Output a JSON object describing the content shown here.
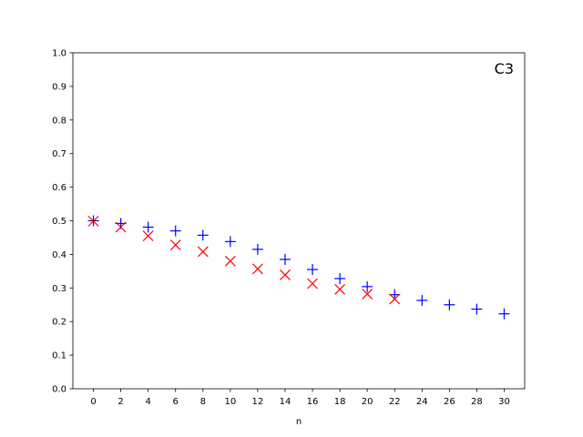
{
  "chart_data": {
    "type": "scatter",
    "xlabel": "n",
    "ylabel": "",
    "xlim": [
      -1.5,
      31.5
    ],
    "ylim": [
      0.0,
      1.0
    ],
    "xticks": [
      0,
      2,
      4,
      6,
      8,
      10,
      12,
      14,
      16,
      18,
      20,
      22,
      24,
      26,
      28,
      30
    ],
    "yticks": [
      0.0,
      0.1,
      0.2,
      0.3,
      0.4,
      0.5,
      0.6,
      0.7,
      0.8,
      0.9,
      1.0
    ],
    "ytick_labels": [
      "0.0",
      "0.1",
      "0.2",
      "0.3",
      "0.4",
      "0.5",
      "0.6",
      "0.7",
      "0.8",
      "0.9",
      "1.0"
    ],
    "grid": false,
    "annotation": "C3",
    "series": [
      {
        "marker": "plus",
        "color": "#0000ff",
        "x": [
          0,
          2,
          4,
          6,
          8,
          10,
          12,
          14,
          16,
          18,
          20,
          22,
          24,
          26,
          28,
          30
        ],
        "y": [
          0.5,
          0.492,
          0.481,
          0.47,
          0.457,
          0.438,
          0.415,
          0.385,
          0.355,
          0.328,
          0.304,
          0.28,
          0.263,
          0.25,
          0.237,
          0.223
        ]
      },
      {
        "marker": "x",
        "color": "#ff0000",
        "x": [
          0,
          2,
          4,
          6,
          8,
          10,
          12,
          14,
          16,
          18,
          20,
          22
        ],
        "y": [
          0.499,
          0.481,
          0.455,
          0.428,
          0.408,
          0.38,
          0.357,
          0.339,
          0.313,
          0.296,
          0.282,
          0.267
        ]
      }
    ]
  }
}
